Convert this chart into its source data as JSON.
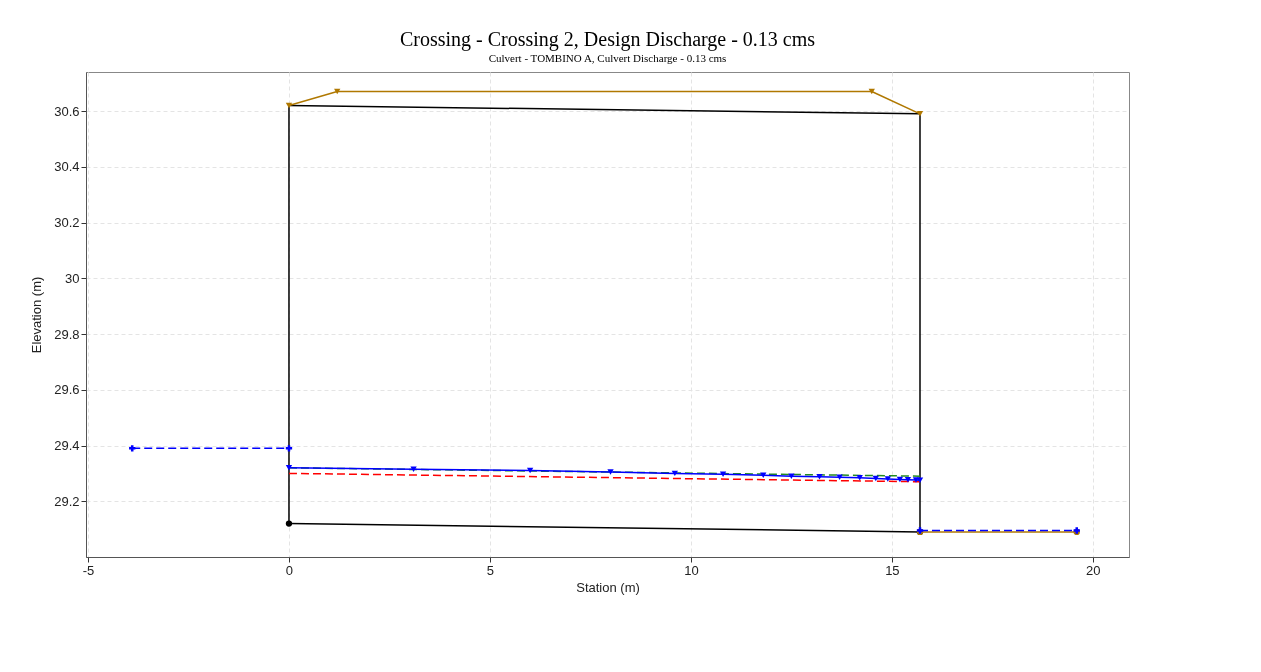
{
  "chart_data": {
    "type": "line",
    "title": "Crossing - Crossing 2, Design Discharge - 0.13 cms",
    "subtitle": "Culvert - TOMBINO A, Culvert Discharge - 0.13 cms",
    "xlabel": "Station (m)",
    "ylabel": "Elevation (m)",
    "xlim": [
      -5.05,
      20.9
    ],
    "ylim": [
      29.0,
      30.74
    ],
    "xticks": [
      -5,
      0,
      5,
      10,
      15,
      20
    ],
    "yticks": [
      29.2,
      29.4,
      29.6,
      29.8,
      30.0,
      30.2,
      30.4,
      30.6
    ],
    "grid": true,
    "series": [
      {
        "color": "#000000",
        "marker": "circle",
        "line_style": "solid",
        "x": [
          0,
          15.7
        ],
        "values": [
          29.12,
          29.09
        ]
      },
      {
        "color": "#000000",
        "marker": "none",
        "line_style": "solid",
        "x": [
          0,
          15.7
        ],
        "values": [
          30.62,
          30.59
        ]
      },
      {
        "color": "#000000",
        "marker": "none",
        "line_style": "solid",
        "x": [
          0,
          0
        ],
        "values": [
          29.12,
          30.62
        ]
      },
      {
        "color": "#000000",
        "marker": "none",
        "line_style": "solid",
        "x": [
          15.7,
          15.7
        ],
        "values": [
          29.09,
          30.59
        ]
      },
      {
        "color": "#b07800",
        "marker": "triangle",
        "line_style": "solid",
        "x": [
          0,
          1.2,
          14.5,
          15.7
        ],
        "values": [
          30.62,
          30.67,
          30.67,
          30.59
        ]
      },
      {
        "color": "#b07800",
        "marker": "circle",
        "line_style": "solid",
        "x": [
          15.7,
          19.6
        ],
        "values": [
          29.09,
          29.09
        ]
      },
      {
        "color": "#0000ff",
        "marker": "cross",
        "line_style": "dashed",
        "x": [
          -3.9,
          0
        ],
        "values": [
          29.39,
          29.39
        ]
      },
      {
        "color": "#0000ff",
        "marker": "cross",
        "line_style": "dashed",
        "x": [
          15.7,
          19.6
        ],
        "values": [
          29.095,
          29.095
        ]
      },
      {
        "color": "#228b22",
        "marker": "none",
        "line_style": "dashed",
        "x": [
          0,
          15.7
        ],
        "values": [
          29.32,
          29.29
        ]
      },
      {
        "color": "#ff0000",
        "marker": "none",
        "line_style": "dashed",
        "x": [
          0,
          15.7
        ],
        "values": [
          29.3,
          29.27
        ]
      },
      {
        "color": "#0000ff",
        "marker": "triangle",
        "line_style": "solid",
        "x": [
          0,
          3.1,
          6.0,
          8.0,
          9.6,
          10.8,
          11.8,
          12.5,
          13.2,
          13.7,
          14.2,
          14.6,
          14.9,
          15.2,
          15.4,
          15.6,
          15.7
        ],
        "values": [
          29.32,
          29.315,
          29.31,
          29.305,
          29.3,
          29.297,
          29.293,
          29.29,
          29.288,
          29.286,
          29.284,
          29.282,
          29.28,
          29.278,
          29.277,
          29.276,
          29.275
        ]
      }
    ]
  }
}
